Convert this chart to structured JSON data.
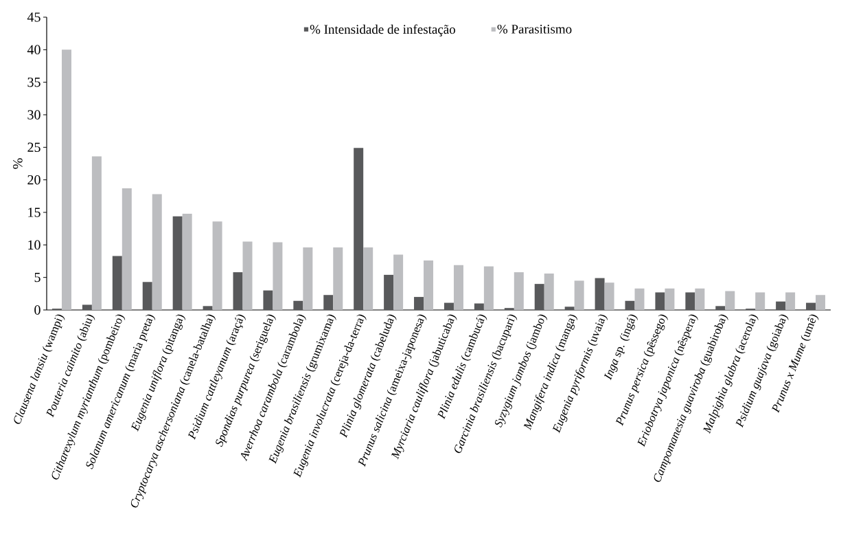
{
  "chart_data": {
    "type": "bar",
    "ylabel": "%",
    "categories": [
      "*Clausena lansiu* (wampi)",
      "*Pouteria caimito* (abiu)",
      "*Citharexylum myrianthum* (pombeiro)",
      "*Solanum americanum* (maria preta)",
      "*Eugenia uniflora* (pitanga)",
      "*Cryptocarya aschersoniana* (canela-batalha)",
      "*Psidium cattleyanum* (araçá)",
      "*Spondias purpurea* (seriguela)",
      "*Averrhoa carambola* (carambola)",
      "*Eugenia brasiliensis* (grumixama)",
      "*Eugenia involucrata* (cereja-da-terra)",
      "*Plinia glomerata* (cabeluda)",
      "*Prunus salicina* (ameixa-japonesa)",
      "*Myrciaria cauliflora* (jabuticaba)",
      "*Plinia edulis* (cambucá)",
      "*Garcinia brasiliensis* (bacupari)",
      "*Syzygium jambos* (jambo)",
      "*Mangifera indica* (manga)",
      "*Eugenia pyriformis* (uvaia)",
      "*Inga* sp. (ingá)",
      "*Prunus persica* (pêssego)",
      "*Eriobotrya japonica* (nêspera)",
      "*Campomanesia guaviroba* (guabiroba)",
      "*Malpighia glabra* (acerola)",
      "*Psidium guajava* (goiaba)",
      "*Prunus x Mume* (umê)"
    ],
    "series": [
      {
        "name": "% Intensidade de infestação",
        "color": "#58595b",
        "values": [
          0.2,
          0.8,
          8.3,
          4.3,
          14.4,
          0.6,
          5.8,
          3.0,
          1.4,
          2.3,
          24.9,
          5.4,
          2.0,
          1.1,
          1.0,
          0.3,
          4.0,
          0.5,
          4.9,
          1.4,
          2.7,
          2.7,
          0.6,
          0.2,
          1.3,
          1.1
        ]
      },
      {
        "name": "% Parasitismo",
        "color": "#bcbdc0",
        "values": [
          40.0,
          23.6,
          18.7,
          17.8,
          14.8,
          13.6,
          10.5,
          10.4,
          9.6,
          9.6,
          9.6,
          8.5,
          7.6,
          6.9,
          6.7,
          5.8,
          5.6,
          4.5,
          4.2,
          3.3,
          3.3,
          3.3,
          2.9,
          2.7,
          2.7,
          2.3
        ]
      }
    ],
    "ylim": [
      0,
      45
    ],
    "yticks": [
      0,
      5,
      10,
      15,
      20,
      25,
      30,
      35,
      40,
      45
    ],
    "legend": "top",
    "grid": false
  }
}
